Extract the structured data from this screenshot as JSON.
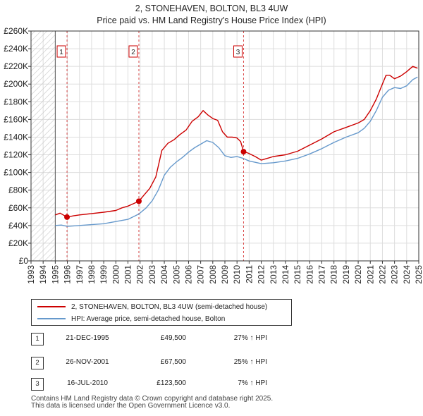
{
  "title": {
    "line1": "2, STONEHAVEN, BOLTON, BL3 4UW",
    "line2": "Price paid vs. HM Land Registry's House Price Index (HPI)"
  },
  "colors": {
    "property": "#cc0000",
    "hpi": "#6699cc",
    "grid": "#dddddd",
    "hatch": "#c8c8c8",
    "marker": "#cc0000"
  },
  "chart_data": {
    "type": "line",
    "title": "Price paid vs. HM Land Registry's House Price Index (HPI)",
    "xlabel": "",
    "ylabel": "",
    "xlim": [
      1993,
      2025
    ],
    "ylim": [
      0,
      260000
    ],
    "x_ticks": [
      1993,
      1994,
      1995,
      1996,
      1997,
      1998,
      1999,
      2000,
      2001,
      2002,
      2003,
      2004,
      2005,
      2006,
      2007,
      2008,
      2009,
      2010,
      2011,
      2012,
      2013,
      2014,
      2015,
      2016,
      2017,
      2018,
      2019,
      2020,
      2021,
      2022,
      2023,
      2024,
      2025
    ],
    "y_ticks": [
      {
        "value": 0,
        "label": "£0"
      },
      {
        "value": 20000,
        "label": "£20K"
      },
      {
        "value": 40000,
        "label": "£40K"
      },
      {
        "value": 60000,
        "label": "£60K"
      },
      {
        "value": 80000,
        "label": "£80K"
      },
      {
        "value": 100000,
        "label": "£100K"
      },
      {
        "value": 120000,
        "label": "£120K"
      },
      {
        "value": 140000,
        "label": "£140K"
      },
      {
        "value": 160000,
        "label": "£160K"
      },
      {
        "value": 180000,
        "label": "£180K"
      },
      {
        "value": 200000,
        "label": "£200K"
      },
      {
        "value": 220000,
        "label": "£220K"
      },
      {
        "value": 240000,
        "label": "£240K"
      },
      {
        "value": 260000,
        "label": "£260K"
      }
    ],
    "hatched_until": 1995.0,
    "series": [
      {
        "name": "2, STONEHAVEN, BOLTON, BL3 4UW (semi-detached house)",
        "color": "#cc0000",
        "x": [
          1995.0,
          1995.4,
          1995.97,
          1996.5,
          1997.0,
          1998.0,
          1999.0,
          2000.0,
          2000.5,
          2001.0,
          2001.5,
          2001.9,
          2002.3,
          2002.8,
          2003.3,
          2003.8,
          2004.3,
          2004.8,
          2005.3,
          2005.8,
          2006.3,
          2006.8,
          2007.2,
          2007.6,
          2008.0,
          2008.4,
          2008.8,
          2009.2,
          2009.6,
          2010.0,
          2010.3,
          2010.54,
          2010.9,
          2011.5,
          2012.0,
          2012.5,
          2013.0,
          2014.0,
          2015.0,
          2016.0,
          2017.0,
          2018.0,
          2019.0,
          2020.0,
          2020.5,
          2021.0,
          2021.5,
          2022.0,
          2022.3,
          2022.6,
          2023.0,
          2023.5,
          2024.0,
          2024.5,
          2024.9
        ],
        "values": [
          52000,
          54000,
          49500,
          51000,
          52000,
          53500,
          55000,
          57000,
          60000,
          62000,
          65000,
          67500,
          74000,
          82000,
          95000,
          125000,
          133000,
          137000,
          143000,
          148000,
          158000,
          163000,
          170000,
          165000,
          161000,
          159000,
          146000,
          140000,
          140000,
          139000,
          135000,
          123500,
          122000,
          118000,
          114000,
          116000,
          118000,
          120000,
          124000,
          131000,
          138000,
          146000,
          151000,
          156000,
          160000,
          170000,
          183000,
          200000,
          210000,
          210000,
          206000,
          209000,
          214000,
          220000,
          218000
        ]
      },
      {
        "name": "HPI: Average price, semi-detached house, Bolton",
        "color": "#6699cc",
        "x": [
          1995.0,
          1995.5,
          1996.0,
          1997.0,
          1998.0,
          1999.0,
          2000.0,
          2001.0,
          2001.9,
          2002.5,
          2003.0,
          2003.5,
          2004.0,
          2004.5,
          2005.0,
          2005.5,
          2006.0,
          2006.5,
          2007.0,
          2007.5,
          2008.0,
          2008.5,
          2009.0,
          2009.5,
          2010.0,
          2010.5,
          2011.0,
          2012.0,
          2013.0,
          2014.0,
          2015.0,
          2016.0,
          2017.0,
          2018.0,
          2019.0,
          2020.0,
          2020.5,
          2021.0,
          2021.5,
          2022.0,
          2022.5,
          2023.0,
          2023.5,
          2024.0,
          2024.5,
          2024.9
        ],
        "values": [
          40000,
          40500,
          39000,
          40000,
          41000,
          42000,
          44500,
          47000,
          53000,
          60000,
          68000,
          80000,
          97000,
          106000,
          112000,
          117000,
          123000,
          128000,
          132000,
          136000,
          134000,
          128000,
          119000,
          117000,
          118000,
          116000,
          113000,
          110000,
          111000,
          113000,
          116000,
          121000,
          127000,
          134000,
          140000,
          145000,
          150000,
          158000,
          170000,
          185000,
          193000,
          196000,
          195000,
          198000,
          205000,
          208000
        ]
      }
    ],
    "sales": [
      {
        "label": "1",
        "x": 1995.97,
        "value": 49500
      },
      {
        "label": "2",
        "x": 2001.9,
        "value": 67500
      },
      {
        "label": "3",
        "x": 2010.54,
        "value": 123500
      }
    ]
  },
  "legend": {
    "property": "2, STONEHAVEN, BOLTON, BL3 4UW (semi-detached house)",
    "hpi": "HPI: Average price, semi-detached house, Bolton"
  },
  "sales_table": [
    {
      "num": "1",
      "date": "21-DEC-1995",
      "price": "£49,500",
      "hpi": "27% ↑ HPI"
    },
    {
      "num": "2",
      "date": "26-NOV-2001",
      "price": "£67,500",
      "hpi": "25% ↑ HPI"
    },
    {
      "num": "3",
      "date": "16-JUL-2010",
      "price": "£123,500",
      "hpi": "7% ↑ HPI"
    }
  ],
  "footer": {
    "line1": "Contains HM Land Registry data © Crown copyright and database right 2025.",
    "line2": "This data is licensed under the Open Government Licence v3.0."
  }
}
